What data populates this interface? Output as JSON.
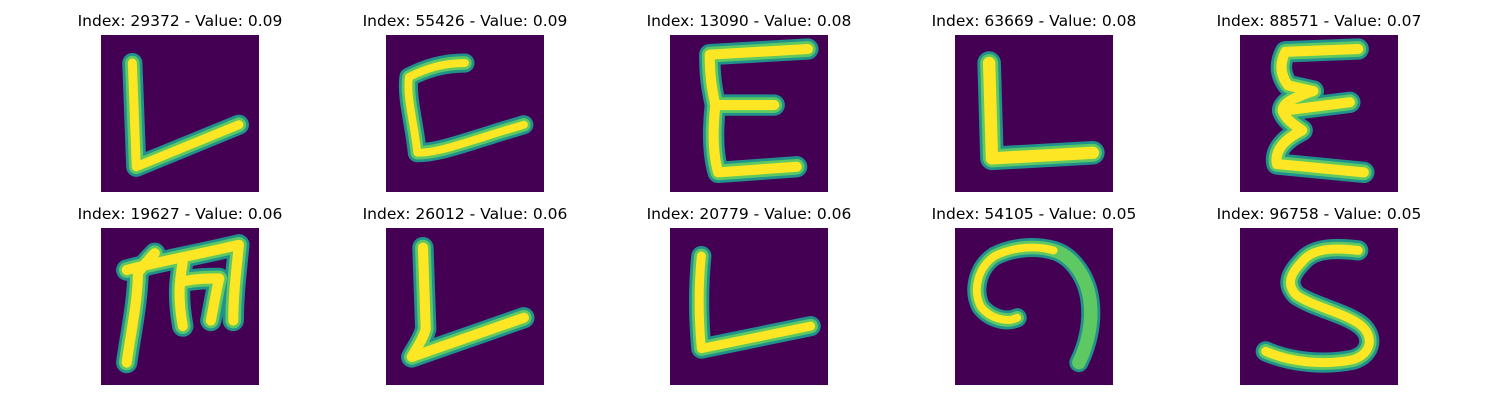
{
  "colors": {
    "background": "#440154",
    "stroke_edge": "#21918c",
    "stroke_mid": "#5ec962",
    "stroke_core": "#fde725"
  },
  "panels": [
    {
      "title": "Index: 29372 - Value: 0.09",
      "glyph": "L-slant"
    },
    {
      "title": "Index: 55426 - Value: 0.09",
      "glyph": "C"
    },
    {
      "title": "Index: 13090 - Value: 0.08",
      "glyph": "E"
    },
    {
      "title": "Index: 63669 - Value: 0.08",
      "glyph": "L"
    },
    {
      "title": "Index: 88571 - Value: 0.07",
      "glyph": "epsilon"
    },
    {
      "title": "Index: 19627 - Value: 0.06",
      "glyph": "M"
    },
    {
      "title": "Index: 26012 - Value: 0.06",
      "glyph": "L-slant"
    },
    {
      "title": "Index: 20779 - Value: 0.06",
      "glyph": "L"
    },
    {
      "title": "Index: 54105 - Value: 0.05",
      "glyph": "spiral"
    },
    {
      "title": "Index: 96758 - Value: 0.05",
      "glyph": "S"
    }
  ]
}
